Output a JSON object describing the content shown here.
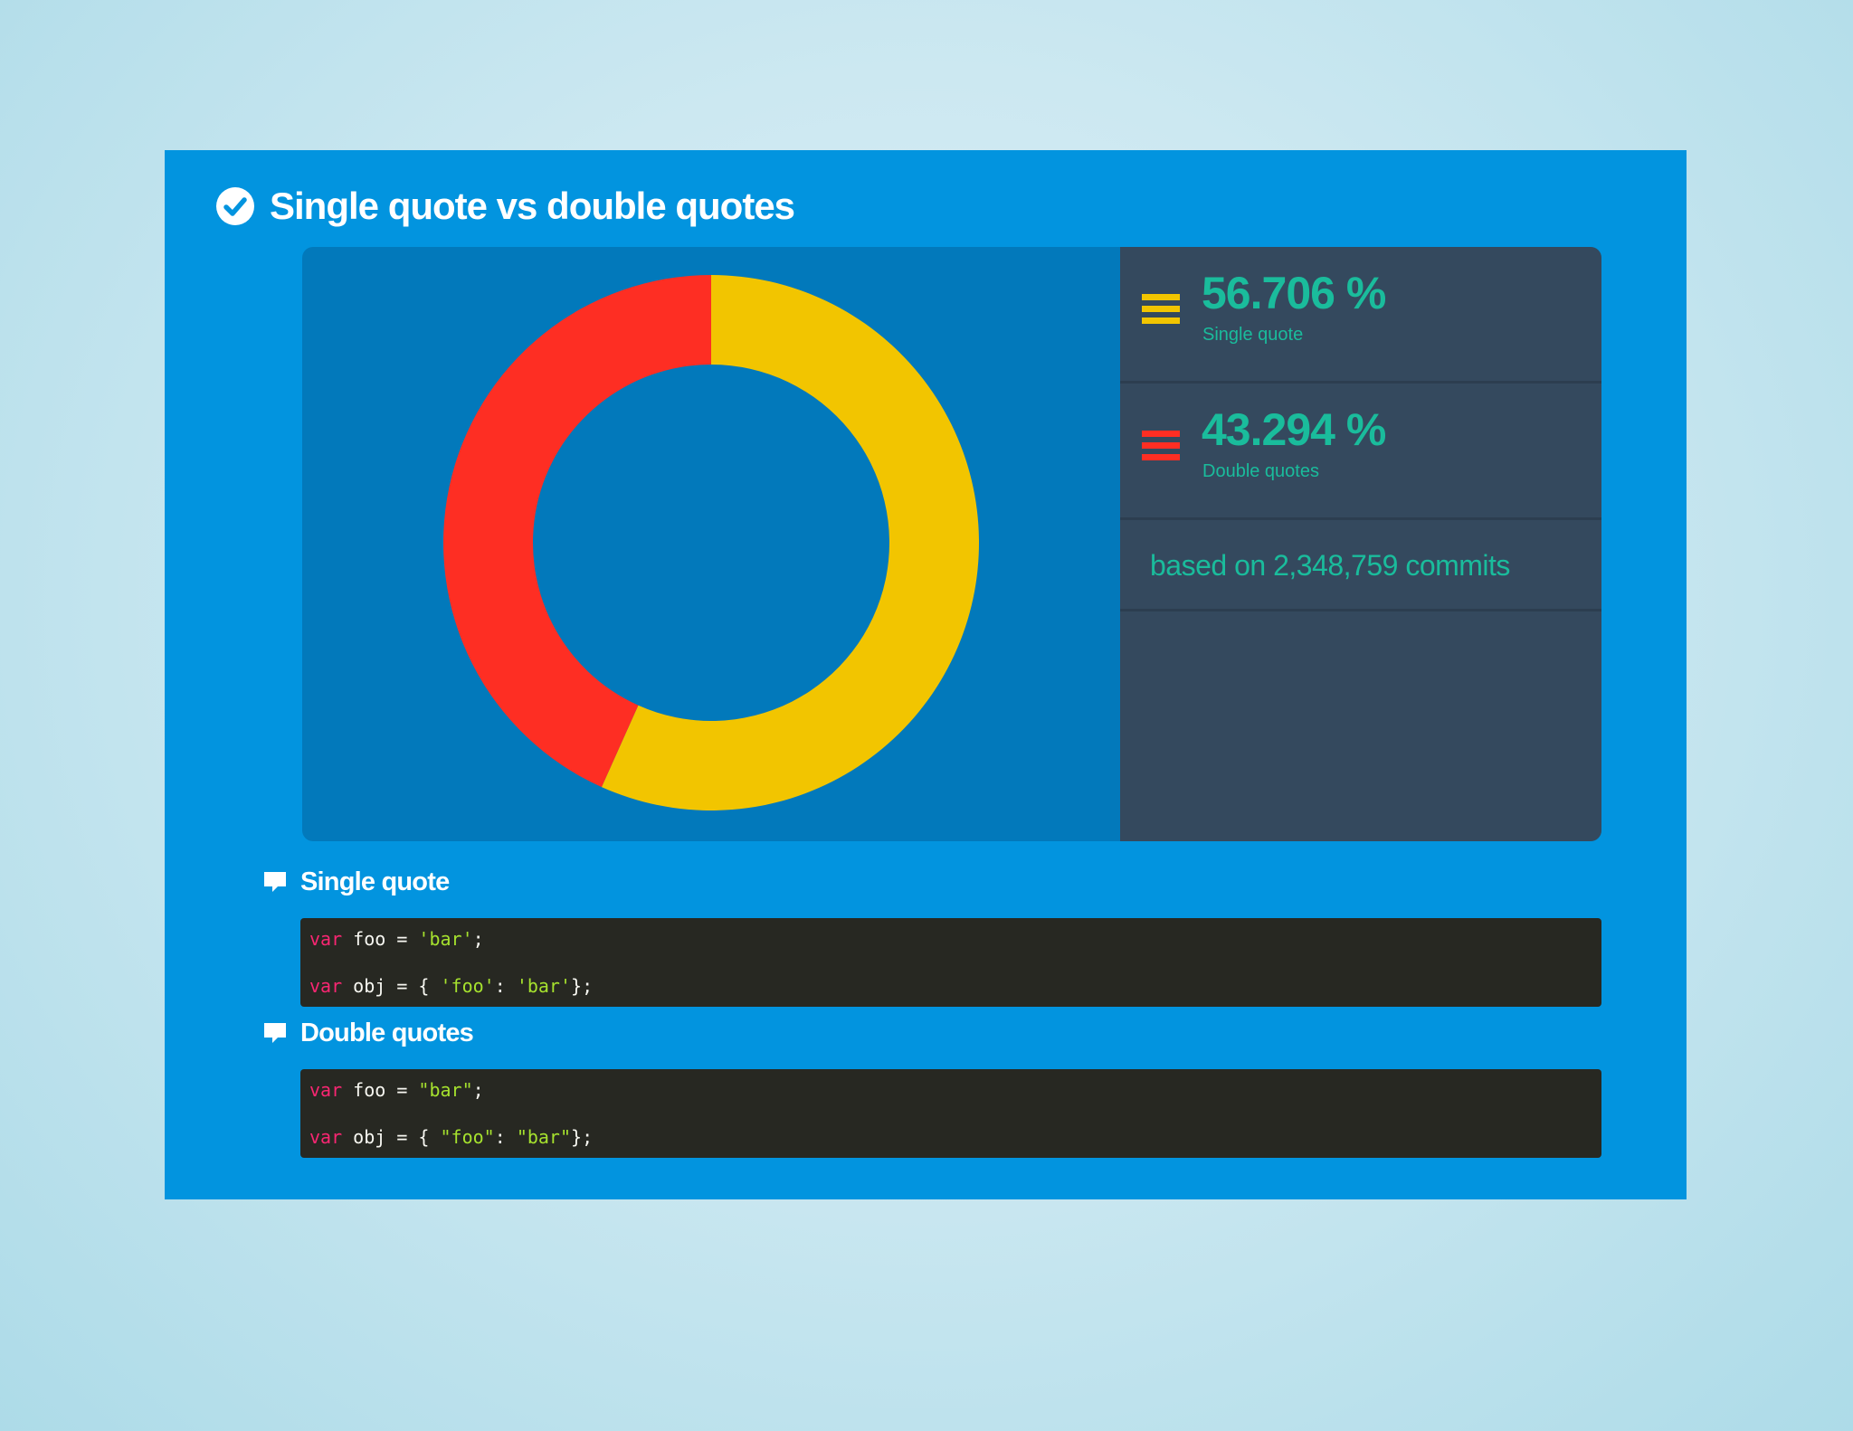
{
  "header": {
    "title": "Single quote vs double quotes",
    "icon": "check-circle-icon"
  },
  "colors": {
    "card": "#0294df",
    "chart_bg": "#0279bb",
    "legend_bg": "#34495e",
    "single_quote": "#f2c500",
    "double_quotes": "#fe2e23",
    "text_accent": "#1abc9c",
    "code_bg": "#272822"
  },
  "chart_data": {
    "type": "pie",
    "variant": "donut",
    "title": "Single quote vs double quotes",
    "series": [
      {
        "name": "Single quote",
        "value": 56.706,
        "label": "56.706 %",
        "color": "#f2c500"
      },
      {
        "name": "Double quotes",
        "value": 43.294,
        "label": "43.294 %",
        "color": "#fe2e23"
      }
    ],
    "note": "based on 2,348,759 commits"
  },
  "examples": [
    {
      "title": "Single quote",
      "icon": "comment-icon",
      "lines": [
        [
          [
            "kw",
            "var"
          ],
          [
            "plain",
            " foo = "
          ],
          [
            "str",
            "'bar'"
          ],
          [
            "plain",
            ";"
          ]
        ],
        [
          [
            "kw",
            "var"
          ],
          [
            "plain",
            " obj = { "
          ],
          [
            "str",
            "'foo'"
          ],
          [
            "plain",
            ": "
          ],
          [
            "str",
            "'bar'"
          ],
          [
            "plain",
            "};"
          ]
        ]
      ]
    },
    {
      "title": "Double quotes",
      "icon": "comment-icon",
      "lines": [
        [
          [
            "kw",
            "var"
          ],
          [
            "plain",
            " foo = "
          ],
          [
            "str",
            "\"bar\""
          ],
          [
            "plain",
            ";"
          ]
        ],
        [
          [
            "kw",
            "var"
          ],
          [
            "plain",
            " obj = { "
          ],
          [
            "str",
            "\"foo\""
          ],
          [
            "plain",
            ": "
          ],
          [
            "str",
            "\"bar\""
          ],
          [
            "plain",
            "};"
          ]
        ]
      ]
    }
  ]
}
